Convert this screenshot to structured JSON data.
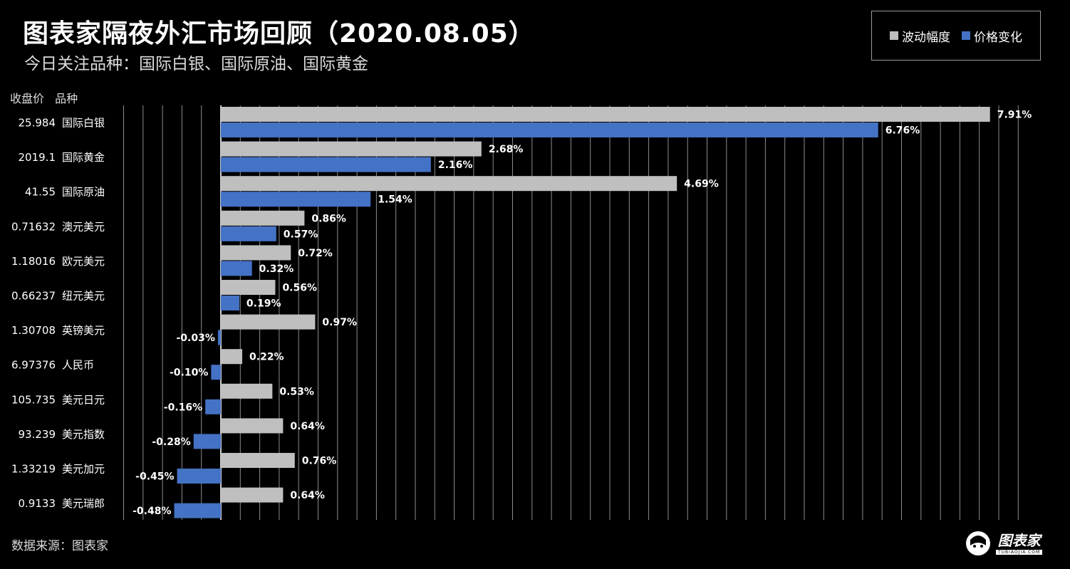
{
  "title": "图表家隔夜外汇市场回顾（2020.08.05）",
  "subtitle": "今日关注品种：国际白银、国际原油、国际黄金",
  "column_headers": {
    "price": "收盘价",
    "name": "品种"
  },
  "source": "数据来源：图表家",
  "logo": {
    "cn": "图表家",
    "en": "TUBIAOJIA.COM"
  },
  "colors": {
    "volatility": "#bfbfbf",
    "change": "#4472c4",
    "background": "#000000",
    "grid": "#8c8c8c"
  },
  "chart_data": {
    "type": "bar",
    "orientation": "horizontal",
    "categories": [
      "国际白银",
      "国际黄金",
      "国际原油",
      "澳元美元",
      "欧元美元",
      "纽元美元",
      "英镑美元",
      "人民币",
      "美元日元",
      "美元指数",
      "美元加元",
      "美元瑞郎"
    ],
    "closing_prices": [
      "25.984",
      "2019.1",
      "41.55",
      "0.71632",
      "1.18016",
      "0.66237",
      "1.30708",
      "6.97376",
      "105.735",
      "93.239",
      "1.33219",
      "0.9133"
    ],
    "series": [
      {
        "name": "波动幅度",
        "values": [
          7.91,
          2.68,
          4.69,
          0.86,
          0.72,
          0.56,
          0.97,
          0.22,
          0.53,
          0.64,
          0.76,
          0.64
        ],
        "labels": [
          "7.91%",
          "2.68%",
          "4.69%",
          "0.86%",
          "0.72%",
          "0.56%",
          "0.97%",
          "0.22%",
          "0.53%",
          "0.64%",
          "0.76%",
          "0.64%"
        ]
      },
      {
        "name": "价格变化",
        "values": [
          6.76,
          2.16,
          1.54,
          0.57,
          0.32,
          0.19,
          -0.03,
          -0.1,
          -0.16,
          -0.28,
          -0.45,
          -0.48
        ],
        "labels": [
          "6.76%",
          "2.16%",
          "1.54%",
          "0.57%",
          "0.32%",
          "0.19%",
          "-0.03%",
          "-0.10%",
          "-0.16%",
          "-0.28%",
          "-0.45%",
          "-0.48%"
        ]
      }
    ],
    "x_unit": "%",
    "xlim": [
      -1.0,
      8.2
    ],
    "grid_step": 0.2,
    "grid": true,
    "legend_position": "top-right"
  }
}
